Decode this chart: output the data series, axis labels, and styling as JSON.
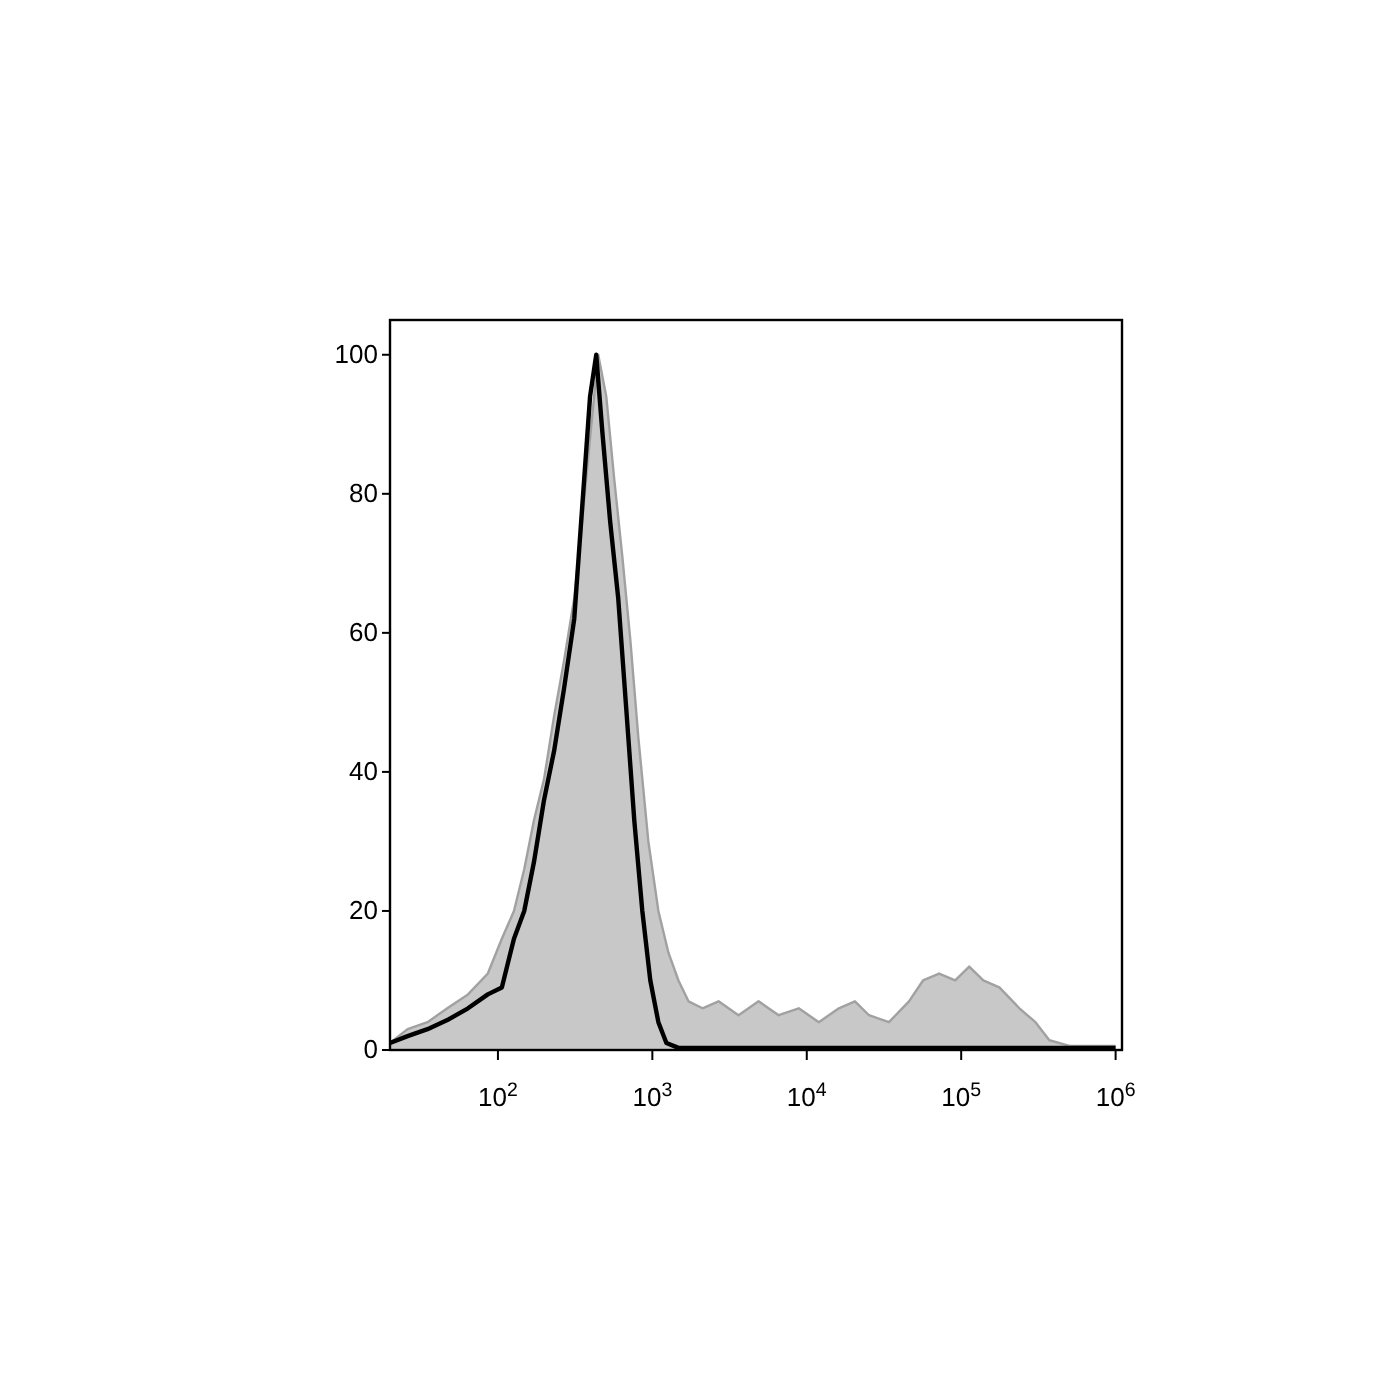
{
  "chart_data": {
    "type": "area",
    "log": "x",
    "xlim": [
      20,
      1100000
    ],
    "ylim": [
      0,
      105
    ],
    "xticks": [
      {
        "value": 100,
        "label": "10$^{2}$"
      },
      {
        "value": 1000,
        "label": "10$^{3}$"
      },
      {
        "value": 10000,
        "label": "10$^{4}$"
      },
      {
        "value": 100000,
        "label": "10$^{5}$"
      },
      {
        "value": 1000000,
        "label": "10$^{6}$"
      }
    ],
    "yticks": [
      0,
      20,
      40,
      60,
      80,
      100
    ],
    "series": [
      {
        "color": "#c8c8c8",
        "x": [
          20,
          26,
          35,
          47,
          64,
          86,
          106,
          127,
          148,
          171,
          199,
          231,
          268,
          312,
          351,
          395,
          446,
          503,
          567,
          639,
          720,
          811,
          942,
          1094,
          1271,
          1476,
          1714,
          2113,
          2683,
          3614,
          4875,
          6577,
          8872,
          11970,
          16140,
          20510,
          25290,
          34040,
          45920,
          56620,
          71940,
          91410,
          112700,
          139000,
          176600,
          238200,
          302700,
          372400,
          502300,
          1000000
        ],
        "values": [
          1,
          3,
          4,
          6,
          8,
          11,
          16,
          20,
          26,
          33,
          39,
          48,
          56,
          65,
          76,
          88,
          100,
          94,
          82,
          71,
          59,
          45,
          30,
          20,
          14,
          10,
          7,
          6,
          7,
          5,
          7,
          5,
          6,
          4,
          6,
          7,
          5,
          4,
          7,
          10,
          11,
          10,
          12,
          10,
          9,
          6,
          4,
          1.4,
          0.6,
          0.6
        ]
      },
      {
        "type": "line",
        "color": "#000000",
        "x": [
          20,
          26,
          35,
          47,
          64,
          86,
          106,
          127,
          148,
          171,
          199,
          231,
          268,
          312,
          351,
          395,
          433,
          474,
          533,
          601,
          678,
          764,
          861,
          970,
          1094,
          1233,
          1476,
          1000000
        ],
        "values": [
          1,
          2,
          3,
          4.3,
          6,
          8,
          9,
          16,
          20,
          27,
          36,
          43,
          52,
          62,
          78,
          94,
          100,
          89,
          76,
          65,
          49,
          33,
          20,
          10,
          4,
          1,
          0.3,
          0.3
        ]
      }
    ]
  }
}
